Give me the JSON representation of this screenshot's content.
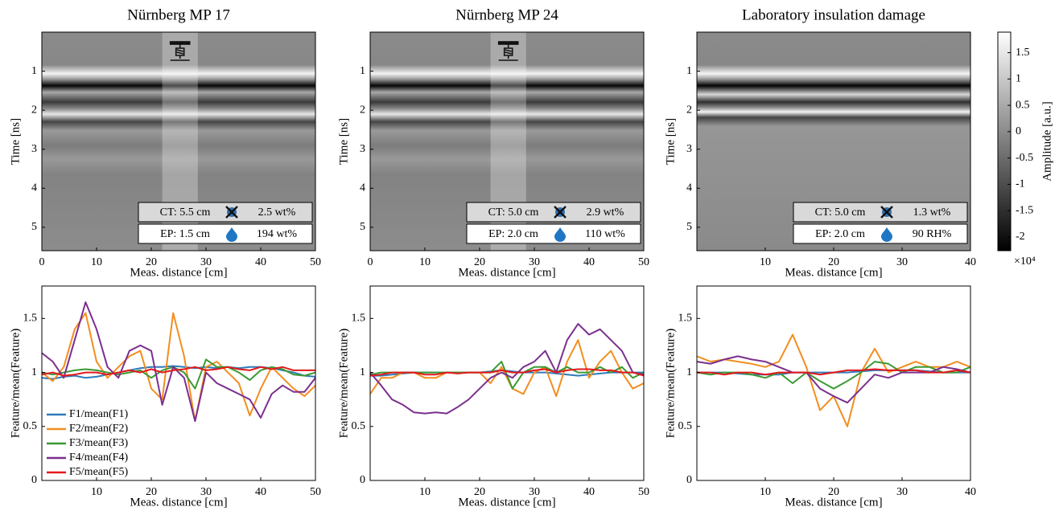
{
  "chart_data": [
    {
      "type": "image",
      "title": "Nürnberg MP 17",
      "xlabel": "Meas. distance [cm]",
      "ylabel": "Time [ns]",
      "xlim": [
        0,
        50
      ],
      "xticks": [
        0,
        10,
        20,
        30,
        40,
        50
      ],
      "ylim": [
        5.6,
        0
      ],
      "yticks": [
        1,
        2,
        3,
        4,
        5
      ],
      "highlight": [
        22,
        28.5
      ],
      "info": {
        "ct": "CT: 5.5 cm",
        "moisture": "2.5 wt%",
        "ep": "EP: 1.5 cm",
        "water": "194 wt%"
      }
    },
    {
      "type": "image",
      "title": "Nürnberg MP 24",
      "xlabel": "Meas. distance [cm]",
      "ylabel": "Time [ns]",
      "xlim": [
        0,
        50
      ],
      "xticks": [
        0,
        10,
        20,
        30,
        40,
        50
      ],
      "ylim": [
        5.6,
        0
      ],
      "yticks": [
        1,
        2,
        3,
        4,
        5
      ],
      "highlight": [
        22,
        28.5
      ],
      "info": {
        "ct": "CT: 5.0 cm",
        "moisture": "2.9 wt%",
        "ep": "EP: 2.0 cm",
        "water": "110 wt%"
      }
    },
    {
      "type": "image",
      "title": "Laboratory insulation damage",
      "xlabel": "Meas. distance [cm]",
      "ylabel": "Time [ns]",
      "xlim": [
        0,
        40
      ],
      "xticks": [
        10,
        20,
        30,
        40
      ],
      "ylim": [
        5.6,
        0
      ],
      "yticks": [
        1,
        2,
        3,
        4,
        5
      ],
      "info": {
        "ct": "CT: 5.0 cm",
        "moisture": "1.3 wt%",
        "ep": "EP: 2.0 cm",
        "water": "90 RH%"
      },
      "colorbar": {
        "label": "Amplitude [a.u.]",
        "exponent": "×10⁴",
        "lim": [
          -2.26,
          1.89
        ],
        "ticks": [
          -2,
          -1.5,
          -1,
          -0.5,
          0,
          0.5,
          1,
          1.5
        ]
      }
    },
    {
      "type": "line",
      "xlabel": "Meas. distance [cm]",
      "ylabel": "Feature/mean(Feature)",
      "xlim": [
        0,
        50
      ],
      "xticks": [
        10,
        20,
        30,
        40,
        50
      ],
      "ylim": [
        0,
        1.8
      ],
      "yticks": [
        0,
        0.5,
        1,
        1.5
      ],
      "legend": "lower left",
      "x": [
        0,
        2,
        4,
        6,
        8,
        10,
        12,
        14,
        16,
        18,
        20,
        22,
        24,
        26,
        28,
        30,
        32,
        34,
        36,
        38,
        40,
        42,
        44,
        46,
        48,
        50
      ],
      "series": [
        {
          "name": "F1/mean(F1)",
          "color": "#2f7ab8",
          "values": [
            0.95,
            0.94,
            0.96,
            0.97,
            0.95,
            0.96,
            0.98,
            1.0,
            1.02,
            1.04,
            1.05,
            1.05,
            1.06,
            1.05,
            1.04,
            1.05,
            1.04,
            1.05,
            1.04,
            1.05,
            1.05,
            1.04,
            1.02,
            1.0,
            0.97,
            0.96
          ]
        },
        {
          "name": "F2/mean(F2)",
          "color": "#f28e1f",
          "values": [
            1.0,
            0.92,
            1.05,
            1.4,
            1.55,
            1.1,
            0.95,
            1.05,
            1.15,
            1.2,
            0.85,
            0.75,
            1.55,
            1.15,
            0.55,
            1.05,
            1.1,
            1.0,
            0.9,
            0.6,
            0.85,
            1.05,
            0.95,
            0.85,
            0.78,
            0.88
          ]
        },
        {
          "name": "F3/mean(F3)",
          "color": "#3a9a33",
          "values": [
            1.0,
            0.98,
            1.0,
            1.02,
            1.03,
            1.02,
            1.0,
            0.98,
            1.0,
            1.02,
            0.95,
            1.02,
            1.05,
            1.0,
            0.85,
            1.12,
            1.05,
            1.05,
            1.0,
            0.93,
            1.02,
            1.05,
            1.03,
            0.98,
            0.97,
            1.0
          ]
        },
        {
          "name": "F4/mean(F4)",
          "color": "#7b2f8e",
          "values": [
            1.18,
            1.1,
            0.95,
            1.3,
            1.65,
            1.4,
            1.05,
            0.95,
            1.2,
            1.25,
            1.2,
            0.7,
            1.05,
            0.95,
            0.55,
            1.0,
            0.9,
            0.85,
            0.8,
            0.75,
            0.58,
            0.8,
            0.88,
            0.82,
            0.82,
            0.95
          ]
        },
        {
          "name": "F5/mean(F5)",
          "color": "#e3181c",
          "values": [
            0.98,
            1.0,
            0.97,
            0.98,
            1.0,
            1.0,
            0.98,
            1.0,
            1.02,
            1.0,
            1.03,
            1.0,
            1.02,
            1.03,
            1.05,
            1.02,
            1.03,
            1.05,
            1.03,
            1.02,
            1.05,
            1.03,
            1.05,
            1.02,
            1.02,
            1.02
          ]
        }
      ]
    },
    {
      "type": "line",
      "xlabel": "Meas. distance [cm]",
      "ylabel": "Feature/mean(Feature)",
      "xlim": [
        0,
        50
      ],
      "xticks": [
        10,
        20,
        30,
        40,
        50
      ],
      "ylim": [
        0,
        1.8
      ],
      "yticks": [
        0,
        0.5,
        1,
        1.5
      ],
      "x": [
        0,
        2,
        4,
        6,
        8,
        10,
        12,
        14,
        16,
        18,
        20,
        22,
        24,
        26,
        28,
        30,
        32,
        34,
        36,
        38,
        40,
        42,
        44,
        46,
        48,
        50
      ],
      "series": [
        {
          "color": "#2f7ab8",
          "values": [
            0.97,
            0.97,
            0.98,
            0.99,
            1.0,
            1.0,
            1.0,
            1.0,
            1.0,
            1.0,
            1.0,
            1.01,
            1.02,
            1.01,
            1.0,
            1.0,
            1.0,
            0.99,
            0.98,
            0.97,
            0.98,
            0.99,
            1.0,
            1.0,
            1.0,
            1.0
          ]
        },
        {
          "color": "#f28e1f",
          "values": [
            0.8,
            0.95,
            0.95,
            1.0,
            1.0,
            0.95,
            0.95,
            1.0,
            1.0,
            1.0,
            1.0,
            0.9,
            1.05,
            0.85,
            0.8,
            1.0,
            1.05,
            0.78,
            1.1,
            1.3,
            0.95,
            1.1,
            1.2,
            1.0,
            0.85,
            0.9
          ]
        },
        {
          "color": "#3a9a33",
          "values": [
            0.98,
            1.0,
            1.0,
            1.0,
            1.0,
            1.0,
            1.0,
            1.0,
            1.0,
            1.0,
            1.0,
            1.0,
            1.1,
            0.85,
            1.0,
            1.05,
            1.05,
            1.0,
            1.05,
            1.0,
            1.0,
            1.05,
            1.0,
            1.05,
            0.95,
            1.0
          ]
        },
        {
          "color": "#7b2f8e",
          "values": [
            1.0,
            0.88,
            0.75,
            0.7,
            0.63,
            0.62,
            0.63,
            0.62,
            0.68,
            0.75,
            0.85,
            0.95,
            1.0,
            0.95,
            1.05,
            1.1,
            1.2,
            1.0,
            1.3,
            1.45,
            1.35,
            1.4,
            1.3,
            1.2,
            1.0,
            0.98
          ]
        },
        {
          "color": "#e3181c",
          "values": [
            0.97,
            0.98,
            1.0,
            1.0,
            1.0,
            0.98,
            0.98,
            1.0,
            0.99,
            1.0,
            1.0,
            1.0,
            1.02,
            1.0,
            1.0,
            1.02,
            1.03,
            1.0,
            1.02,
            1.03,
            1.03,
            1.02,
            1.02,
            1.0,
            1.0,
            0.97
          ]
        }
      ]
    },
    {
      "type": "line",
      "xlabel": "Meas. distance [cm]",
      "ylabel": "Feature/mean(Feature)",
      "xlim": [
        0,
        40
      ],
      "xticks": [
        10,
        20,
        30,
        40
      ],
      "ylim": [
        0,
        1.8
      ],
      "yticks": [
        0,
        0.5,
        1,
        1.5
      ],
      "x": [
        0,
        2,
        4,
        6,
        8,
        10,
        12,
        14,
        16,
        18,
        20,
        22,
        24,
        26,
        28,
        30,
        32,
        34,
        36,
        38,
        40
      ],
      "series": [
        {
          "color": "#2f7ab8",
          "values": [
            1.0,
            1.0,
            1.0,
            0.99,
            0.98,
            0.98,
            0.98,
            1.0,
            1.0,
            1.0,
            1.0,
            1.0,
            1.01,
            1.02,
            1.02,
            1.02,
            1.02,
            1.01,
            1.0,
            1.0,
            1.0
          ]
        },
        {
          "color": "#f28e1f",
          "values": [
            1.15,
            1.1,
            1.12,
            1.1,
            1.08,
            1.05,
            1.1,
            1.35,
            1.05,
            0.65,
            0.78,
            0.5,
            1.0,
            1.22,
            1.0,
            1.05,
            1.1,
            1.05,
            1.05,
            1.1,
            1.05
          ]
        },
        {
          "color": "#3a9a33",
          "values": [
            1.0,
            0.98,
            1.0,
            1.0,
            0.98,
            0.95,
            1.0,
            0.9,
            1.0,
            0.92,
            0.85,
            0.92,
            1.0,
            1.1,
            1.08,
            1.0,
            1.05,
            1.05,
            1.0,
            1.0,
            1.05
          ]
        },
        {
          "color": "#7b2f8e",
          "values": [
            1.1,
            1.08,
            1.12,
            1.15,
            1.12,
            1.1,
            1.05,
            1.0,
            1.0,
            0.85,
            0.78,
            0.72,
            0.85,
            0.98,
            0.95,
            1.0,
            1.0,
            1.0,
            1.05,
            1.03,
            1.0
          ]
        },
        {
          "color": "#e3181c",
          "values": [
            1.0,
            1.0,
            0.98,
            1.0,
            1.0,
            0.98,
            1.0,
            1.0,
            1.0,
            0.98,
            1.0,
            1.02,
            1.02,
            1.03,
            1.02,
            1.02,
            1.02,
            1.0,
            1.0,
            1.02,
            1.0
          ]
        }
      ]
    }
  ]
}
